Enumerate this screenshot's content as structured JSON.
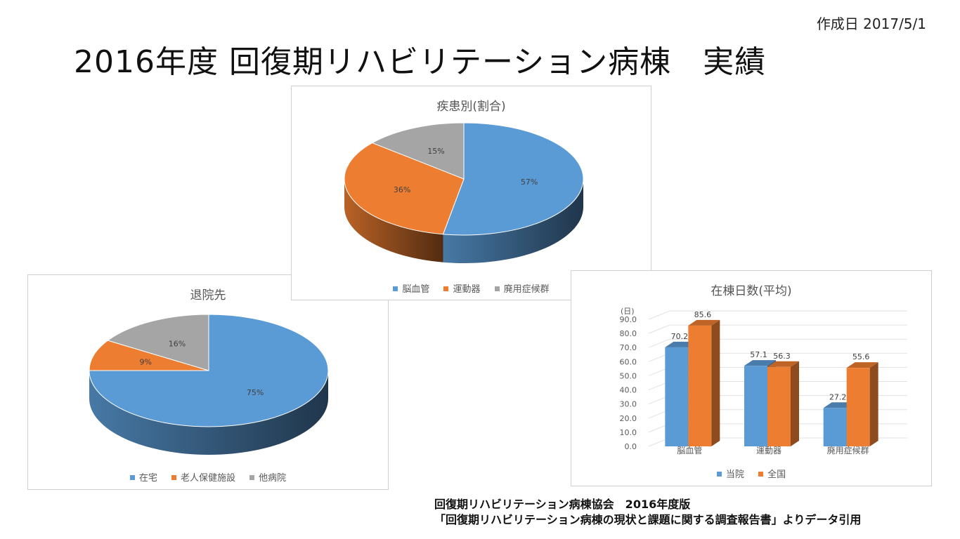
{
  "created_label": "作成日 2017/5/1",
  "title": "2016年度 回復期リハビリテーション病棟　実績",
  "colors": {
    "blue": "#5b9bd5",
    "orange": "#ed7d31",
    "gray": "#a5a5a5"
  },
  "chart_data": [
    {
      "type": "pie",
      "title": "疾患別(割合)",
      "categories": [
        "脳血管",
        "運動器",
        "廃用症候群"
      ],
      "values": [
        57,
        36,
        15
      ],
      "labels": [
        "57%",
        "36%",
        "15%"
      ],
      "legend_position": "bottom"
    },
    {
      "type": "pie",
      "title": "退院先",
      "categories": [
        "在宅",
        "老人保健施設",
        "他病院"
      ],
      "values": [
        75,
        9,
        16
      ],
      "labels": [
        "75%",
        "9%",
        "16%"
      ],
      "legend_position": "bottom"
    },
    {
      "type": "bar",
      "title": "在棟日数(平均)",
      "ylabel": "(日)",
      "categories": [
        "脳血管",
        "運動器",
        "廃用症候群"
      ],
      "series": [
        {
          "name": "当院",
          "values": [
            70.2,
            57.1,
            27.2
          ],
          "labels": [
            "70.2",
            "57.1",
            "27.2"
          ]
        },
        {
          "name": "全国",
          "values": [
            85.6,
            56.3,
            55.6
          ],
          "labels": [
            "85.6",
            "56.3",
            "55.6"
          ]
        }
      ],
      "ylim": [
        0,
        90
      ],
      "yticks": [
        "0.0",
        "10.0",
        "20.0",
        "30.0",
        "40.0",
        "50.0",
        "60.0",
        "70.0",
        "80.0",
        "90.0"
      ],
      "grid": true,
      "legend_position": "bottom"
    }
  ],
  "source": {
    "line1": "回復期リハビリテーション病棟協会　2016年度版",
    "line2": "「回復期リハビリテーション病棟の現状と課題に関する調査報告書」よりデータ引用"
  }
}
